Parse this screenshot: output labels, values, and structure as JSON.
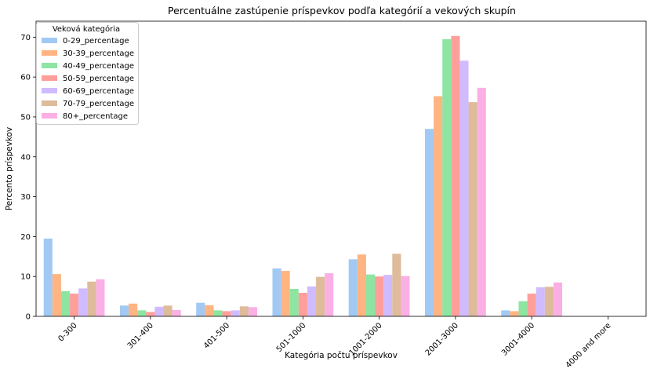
{
  "chart_data": {
    "type": "bar",
    "title": "Percentuálne zastúpenie príspevkov podľa kategórií a vekových skupín",
    "xlabel": "Kategória počtu príspevkov",
    "ylabel": "Percento príspevkov",
    "ylim": [
      0,
      74
    ],
    "yticks": [
      "0",
      "10",
      "20",
      "30",
      "40",
      "50",
      "60",
      "70"
    ],
    "grid": false,
    "legend": {
      "title": "Veková kategória",
      "placement": "top-left"
    },
    "categories": [
      "0-300",
      "301-400",
      "401-500",
      "501-1000",
      "1001-2000",
      "2001-3000",
      "3001-4000",
      "4000 and more"
    ],
    "series": [
      {
        "name": "0-29_percentage",
        "color": "#a1c9f4",
        "values": [
          19.5,
          2.7,
          3.4,
          12.0,
          14.3,
          47.0,
          1.5,
          0
        ]
      },
      {
        "name": "30-39_percentage",
        "color": "#ffb482",
        "values": [
          10.6,
          3.2,
          2.8,
          11.4,
          15.5,
          55.2,
          1.3,
          0
        ]
      },
      {
        "name": "40-49_percentage",
        "color": "#8de5a1",
        "values": [
          6.3,
          1.5,
          1.5,
          6.9,
          10.5,
          69.5,
          3.8,
          0
        ]
      },
      {
        "name": "50-59_percentage",
        "color": "#ff9f9b",
        "values": [
          5.7,
          1.1,
          1.3,
          5.9,
          10.0,
          70.3,
          5.7,
          0
        ]
      },
      {
        "name": "60-69_percentage",
        "color": "#d0bbff",
        "values": [
          7.0,
          2.4,
          1.5,
          7.5,
          10.4,
          64.1,
          7.3,
          0
        ]
      },
      {
        "name": "70-79_percentage",
        "color": "#debb9b",
        "values": [
          8.7,
          2.7,
          2.5,
          9.9,
          15.7,
          53.7,
          7.4,
          0
        ]
      },
      {
        "name": "80+_percentage",
        "color": "#fab0e4",
        "values": [
          9.3,
          1.6,
          2.3,
          10.8,
          10.1,
          57.3,
          8.5,
          0
        ]
      }
    ]
  }
}
